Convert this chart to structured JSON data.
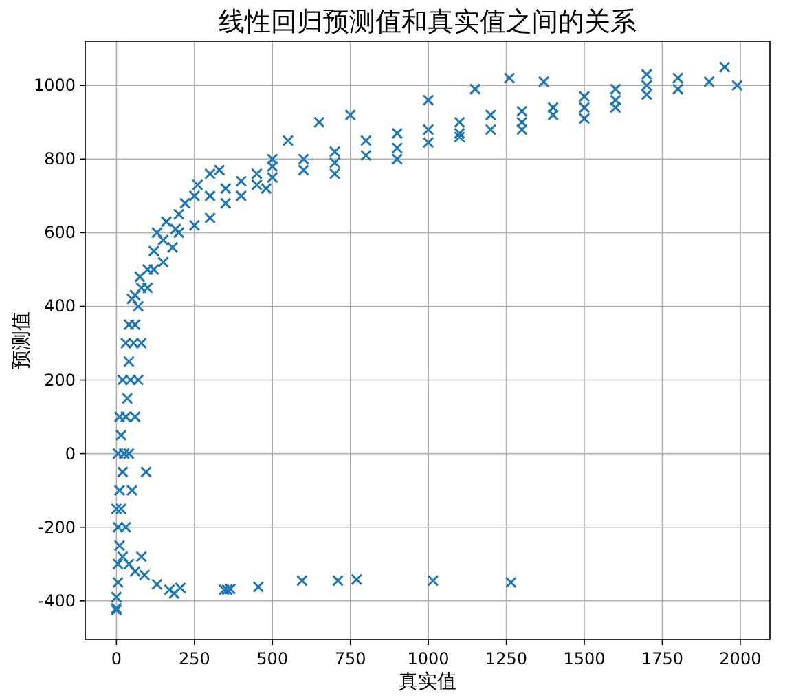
{
  "chart_data": {
    "type": "scatter",
    "title": "线性回归预测值和真实值之间的关系",
    "xlabel": "真实值",
    "ylabel": "预测值",
    "xlim": [
      -100,
      2095
    ],
    "ylim": [
      -505,
      1120
    ],
    "xticks": [
      0,
      250,
      500,
      750,
      1000,
      1250,
      1500,
      1750,
      2000
    ],
    "yticks": [
      -400,
      -200,
      0,
      200,
      400,
      600,
      800,
      1000
    ],
    "grid": true,
    "marker": "cross",
    "series": [
      {
        "color": "#1f77b4",
        "x": [
          130,
          170,
          185,
          205,
          345,
          355,
          365,
          455,
          595,
          710,
          770,
          1015,
          1265,
          0,
          0,
          0,
          5,
          10,
          5,
          15,
          10,
          20,
          25,
          15,
          30,
          35,
          45,
          40,
          55,
          60,
          70,
          5,
          40,
          60,
          80,
          90,
          20,
          30,
          50,
          40,
          60,
          70,
          80,
          95,
          0,
          5,
          10,
          20,
          30,
          40,
          80,
          100,
          120,
          150,
          200,
          250,
          300,
          120,
          150,
          180,
          100,
          200,
          250,
          220,
          300,
          350,
          400,
          450,
          500,
          350,
          400,
          450,
          500,
          600,
          700,
          800,
          900,
          1000,
          1100,
          1200,
          1300,
          1400,
          1500,
          1600,
          1700,
          1800,
          1900,
          1990,
          600,
          700,
          800,
          900,
          1000,
          1100,
          1200,
          1300,
          1400,
          1500,
          1600,
          1700,
          1800,
          1950,
          550,
          650,
          750,
          1000,
          1150,
          1260,
          1370,
          1700,
          500,
          300,
          330,
          260,
          480,
          700,
          900,
          1100,
          1300,
          1500,
          1600,
          160,
          130,
          190,
          60,
          50,
          75
        ],
        "values": [
          -355,
          -370,
          -380,
          -365,
          -370,
          -370,
          -368,
          -362,
          -345,
          -345,
          -342,
          -345,
          -350,
          -390,
          -425,
          -420,
          -300,
          -250,
          -200,
          -150,
          -100,
          -50,
          0,
          50,
          100,
          150,
          200,
          250,
          300,
          350,
          400,
          -350,
          -300,
          -320,
          -280,
          -330,
          -280,
          -200,
          -100,
          0,
          100,
          200,
          300,
          -50,
          -150,
          0,
          100,
          200,
          300,
          350,
          450,
          500,
          550,
          580,
          600,
          620,
          640,
          500,
          520,
          560,
          450,
          650,
          700,
          680,
          700,
          720,
          740,
          760,
          780,
          680,
          700,
          730,
          750,
          770,
          790,
          810,
          830,
          845,
          870,
          880,
          900,
          920,
          940,
          960,
          975,
          990,
          1010,
          1000,
          800,
          820,
          850,
          870,
          880,
          900,
          920,
          930,
          940,
          970,
          990,
          1000,
          1020,
          1050,
          850,
          900,
          920,
          960,
          990,
          1020,
          1010,
          1030,
          800,
          760,
          770,
          730,
          720,
          760,
          800,
          860,
          880,
          910,
          940,
          630,
          600,
          610,
          430,
          420,
          480
        ]
      }
    ]
  }
}
